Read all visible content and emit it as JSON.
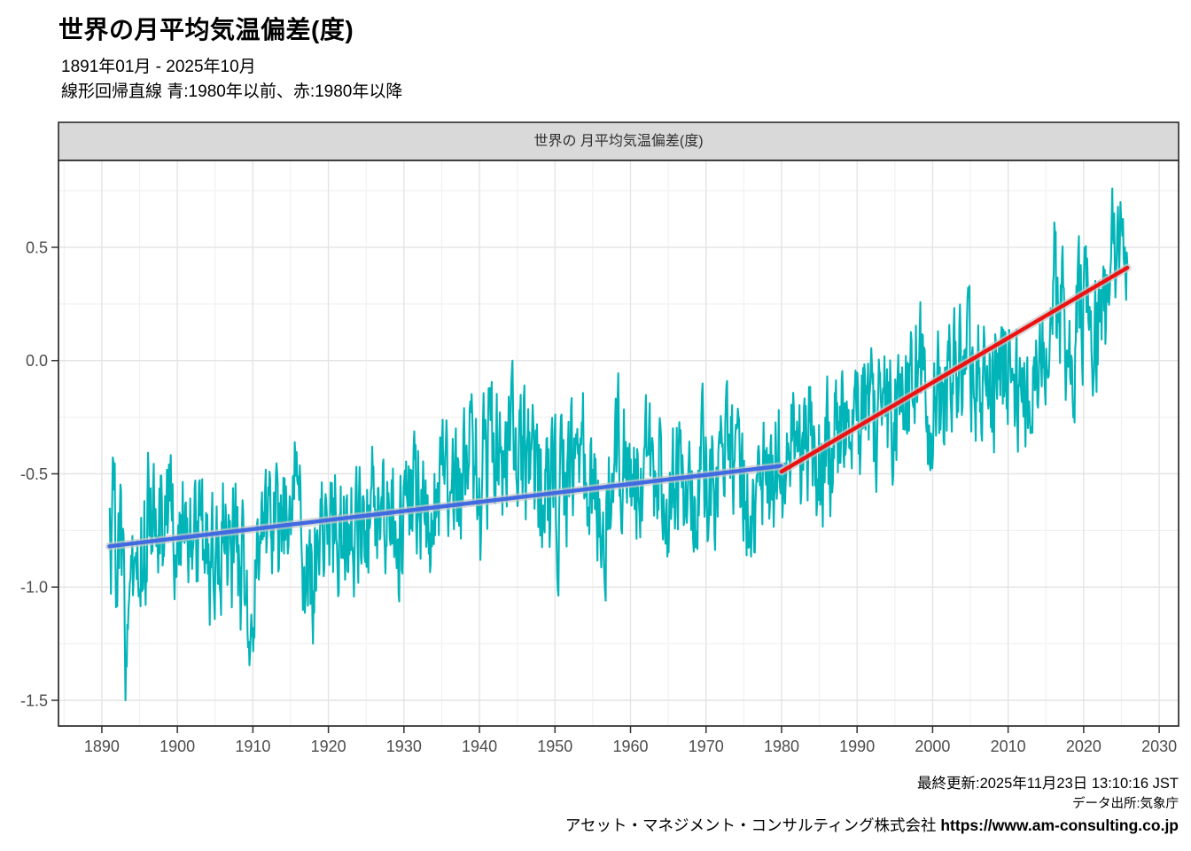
{
  "header": {
    "title": "世界の月平均気温偏差(度)",
    "subtitle_period": "1891年01月 - 2025年10月",
    "subtitle_legend": "線形回帰直線 青:1980年以前、赤:1980年以降"
  },
  "panel": {
    "strip_title": "世界の 月平均気温偏差(度)",
    "strip_bg": "#d9d9d9",
    "border_color": "#2a2a2a",
    "grid_major_color": "#e4e4e4",
    "grid_minor_color": "#f1f1f1",
    "tick_color": "#333333",
    "axis_text_color": "#4d4d4d"
  },
  "footer": {
    "updated": "最終更新:2025年11月23日 13:10:16 JST",
    "source": "データ出所:気象庁",
    "company": "アセット・マネジメント・コンサルティング株式会社",
    "url": "https://www.am-consulting.co.jp"
  },
  "chart_data": {
    "type": "line",
    "title": "世界の 月平均気温偏差(度)",
    "xlabel": "",
    "ylabel": "",
    "unit": "度",
    "x_axis": {
      "range": [
        1884.26,
        2032.57
      ],
      "major_ticks": [
        1890,
        1900,
        1910,
        1920,
        1930,
        1940,
        1950,
        1960,
        1970,
        1980,
        1990,
        2000,
        2010,
        2020,
        2030
      ],
      "minor_ticks": [
        1885,
        1895,
        1905,
        1915,
        1925,
        1935,
        1945,
        1955,
        1965,
        1975,
        1985,
        1995,
        2005,
        2015,
        2025
      ]
    },
    "y_axis": {
      "range": [
        -1.6135,
        0.8835
      ],
      "major_ticks": [
        0.5,
        0.0,
        -0.5,
        -1.0,
        -1.5
      ],
      "major_labels": [
        "0.5",
        "0.0",
        "-0.5",
        "-1.0",
        "-1.5"
      ],
      "minor_ticks": [
        0.75,
        0.25,
        -0.25,
        -0.75,
        -1.25
      ]
    },
    "series": {
      "name": "月平均気温偏差",
      "color": "#00b4b8",
      "start_year": 1891,
      "start_month": 1,
      "end_year": 2025,
      "end_month": 10,
      "annual_mean": [
        -0.8,
        -0.85,
        -1.05,
        -0.9,
        -0.8,
        -0.65,
        -0.6,
        -0.75,
        -0.7,
        -0.65,
        -0.65,
        -0.75,
        -0.85,
        -0.9,
        -0.8,
        -0.7,
        -0.85,
        -0.95,
        -1.0,
        -0.95,
        -0.9,
        -0.8,
        -0.78,
        -0.65,
        -0.58,
        -0.8,
        -1.0,
        -0.85,
        -0.72,
        -0.7,
        -0.68,
        -0.75,
        -0.72,
        -0.75,
        -0.65,
        -0.58,
        -0.62,
        -0.65,
        -0.8,
        -0.58,
        -0.55,
        -0.58,
        -0.72,
        -0.58,
        -0.62,
        -0.58,
        -0.52,
        -0.48,
        -0.45,
        -0.42,
        -0.38,
        -0.45,
        -0.45,
        -0.35,
        -0.38,
        -0.52,
        -0.52,
        -0.55,
        -0.58,
        -0.65,
        -0.52,
        -0.45,
        -0.42,
        -0.58,
        -0.6,
        -0.68,
        -0.48,
        -0.4,
        -0.45,
        -0.5,
        -0.45,
        -0.45,
        -0.48,
        -0.65,
        -0.6,
        -0.55,
        -0.55,
        -0.6,
        -0.48,
        -0.52,
        -0.58,
        -0.5,
        -0.42,
        -0.62,
        -0.58,
        -0.62,
        -0.42,
        -0.48,
        -0.42,
        -0.4,
        -0.35,
        -0.42,
        -0.32,
        -0.48,
        -0.45,
        -0.4,
        -0.28,
        -0.28,
        -0.32,
        -0.22,
        -0.22,
        -0.32,
        -0.32,
        -0.22,
        -0.12,
        -0.22,
        -0.08,
        -0.02,
        -0.22,
        -0.22,
        -0.12,
        -0.06,
        -0.06,
        -0.1,
        -0.06,
        -0.08,
        -0.06,
        -0.16,
        -0.06,
        -0.06,
        -0.16,
        -0.12,
        -0.06,
        0.0,
        0.1,
        0.22,
        0.15,
        0.1,
        0.18,
        0.25,
        0.1,
        0.14,
        0.38,
        0.62,
        0.5
      ],
      "monthly_overrides": {
        "1891-1": -0.65,
        "1891-3": -1.03,
        "1893-2": -1.5,
        "1909-12": -1.18,
        "1917-12": -1.25,
        "1940-2": -0.88,
        "1943-11": -0.16,
        "1998-2": 0.0,
        "2016-2": 0.61,
        "2020-2": 0.5,
        "2023-6": 0.3,
        "2023-8": 0.45,
        "2023-10": 0.76,
        "2024-1": 0.65,
        "2024-6": 0.6,
        "2024-11": 0.7,
        "2025-2": 0.55,
        "2025-6": 0.5,
        "2025-10": 0.42
      },
      "monthly_noise": {
        "ar": 0.45,
        "amplitude": 0.26,
        "seed": 77,
        "clamp": [
          -1.52,
          0.78
        ]
      }
    },
    "regressions": [
      {
        "name": "線形回帰 1980年以前",
        "color": "#4169e1",
        "band_color": "#c8c8c8",
        "x": [
          1891.0,
          1979.95
        ],
        "y": [
          -0.82,
          -0.465
        ]
      },
      {
        "name": "線形回帰 1980年以降",
        "color": "#ee1111",
        "band_color": "#c8c8c8",
        "x": [
          1980.0,
          2025.79
        ],
        "y": [
          -0.49,
          0.41
        ]
      }
    ],
    "legend_position": "none",
    "grid": true
  }
}
